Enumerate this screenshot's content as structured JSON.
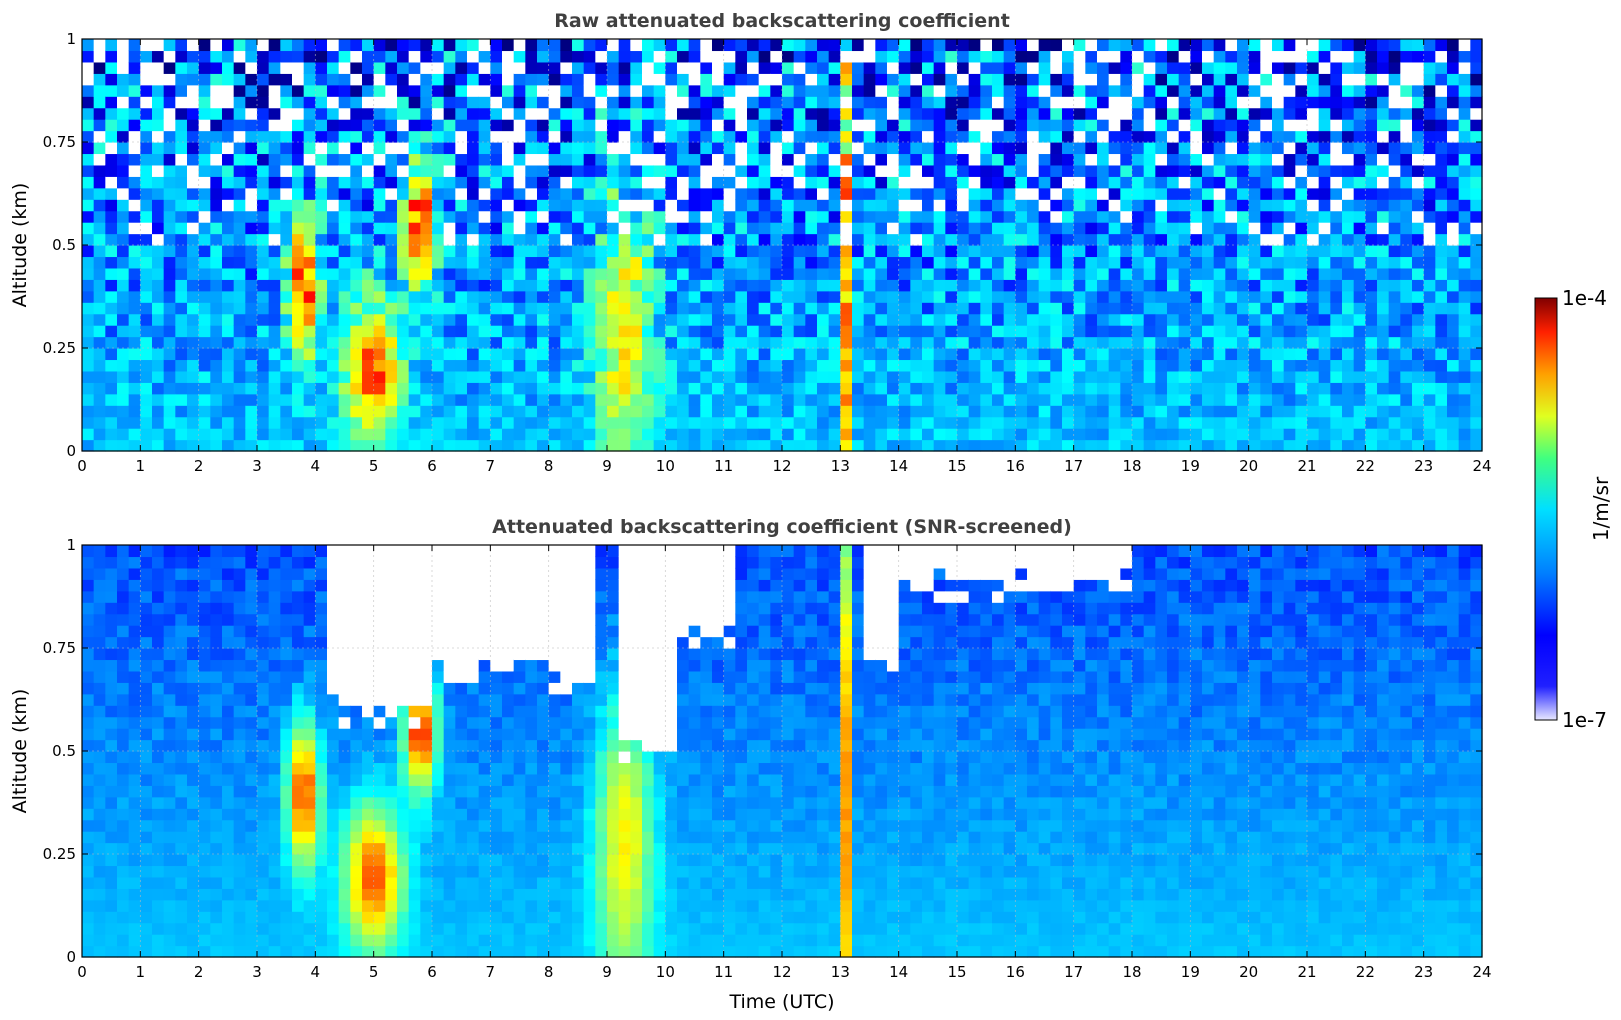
{
  "chart_data": [
    {
      "type": "heatmap",
      "title": "Raw attenuated backscattering coefficient",
      "xlabel": "",
      "ylabel": "Altitude (km)",
      "xlim": [
        0,
        24
      ],
      "ylim": [
        0,
        1
      ],
      "x_ticks": [
        "0",
        "1",
        "2",
        "3",
        "4",
        "5",
        "6",
        "7",
        "8",
        "9",
        "10",
        "11",
        "12",
        "13",
        "14",
        "15",
        "16",
        "17",
        "18",
        "19",
        "20",
        "21",
        "22",
        "23",
        "24"
      ],
      "y_ticks": [
        "0",
        "0.25",
        "0.5",
        "0.75",
        "1"
      ],
      "grid": true,
      "noise_level": 0.35,
      "features": [
        {
          "t": 3.8,
          "z": 0.4,
          "st": 0.2,
          "sz": 0.12,
          "amp": 0.55
        },
        {
          "t": 5.0,
          "z": 0.2,
          "st": 0.35,
          "sz": 0.12,
          "amp": 0.5
        },
        {
          "t": 5.8,
          "z": 0.55,
          "st": 0.2,
          "sz": 0.1,
          "amp": 0.6
        },
        {
          "t": 9.3,
          "z": 0.3,
          "st": 0.35,
          "sz": 0.25,
          "amp": 0.35
        },
        {
          "t": 13.1,
          "z": 0.45,
          "st": 0.06,
          "sz": 0.6,
          "amp": 0.45
        }
      ]
    },
    {
      "type": "heatmap",
      "title": "Attenuated backscattering coefficient (SNR-screened)",
      "xlabel": "Time (UTC)",
      "ylabel": "Altitude (km)",
      "xlim": [
        0,
        24
      ],
      "ylim": [
        0,
        1
      ],
      "x_ticks": [
        "0",
        "1",
        "2",
        "3",
        "4",
        "5",
        "6",
        "7",
        "8",
        "9",
        "10",
        "11",
        "12",
        "13",
        "14",
        "15",
        "16",
        "17",
        "18",
        "19",
        "20",
        "21",
        "22",
        "23",
        "24"
      ],
      "y_ticks": [
        "0",
        "0.25",
        "0.5",
        "0.75",
        "1"
      ],
      "grid": true,
      "noise_level": 0.08,
      "screened_regions": [
        {
          "t0": 4.2,
          "t1": 6.0,
          "z_top": 0.6
        },
        {
          "t0": 6.0,
          "t1": 8.0,
          "z_top": 0.7
        },
        {
          "t0": 8.0,
          "t1": 8.9,
          "z_top": 0.65
        },
        {
          "t0": 9.2,
          "t1": 10.3,
          "z_top": 0.5
        },
        {
          "t0": 10.3,
          "t1": 11.3,
          "z_top": 0.78
        },
        {
          "t0": 13.5,
          "t1": 14.0,
          "z_top": 0.7
        },
        {
          "t0": 14.0,
          "t1": 18.0,
          "z_top": 0.9
        }
      ],
      "features": [
        {
          "t": 3.8,
          "z": 0.4,
          "st": 0.2,
          "sz": 0.12,
          "amp": 0.55
        },
        {
          "t": 5.0,
          "z": 0.2,
          "st": 0.35,
          "sz": 0.12,
          "amp": 0.5
        },
        {
          "t": 5.8,
          "z": 0.55,
          "st": 0.2,
          "sz": 0.1,
          "amp": 0.6
        },
        {
          "t": 9.3,
          "z": 0.3,
          "st": 0.35,
          "sz": 0.25,
          "amp": 0.35
        },
        {
          "t": 13.1,
          "z": 0.45,
          "st": 0.06,
          "sz": 0.6,
          "amp": 0.45
        }
      ]
    }
  ],
  "colorbar": {
    "max_label": "1e-4",
    "min_label": "1e-7",
    "unit_label": "1/m/sr",
    "colormap": "jet",
    "scale": "log",
    "range": [
      1e-07,
      0.0001
    ]
  }
}
